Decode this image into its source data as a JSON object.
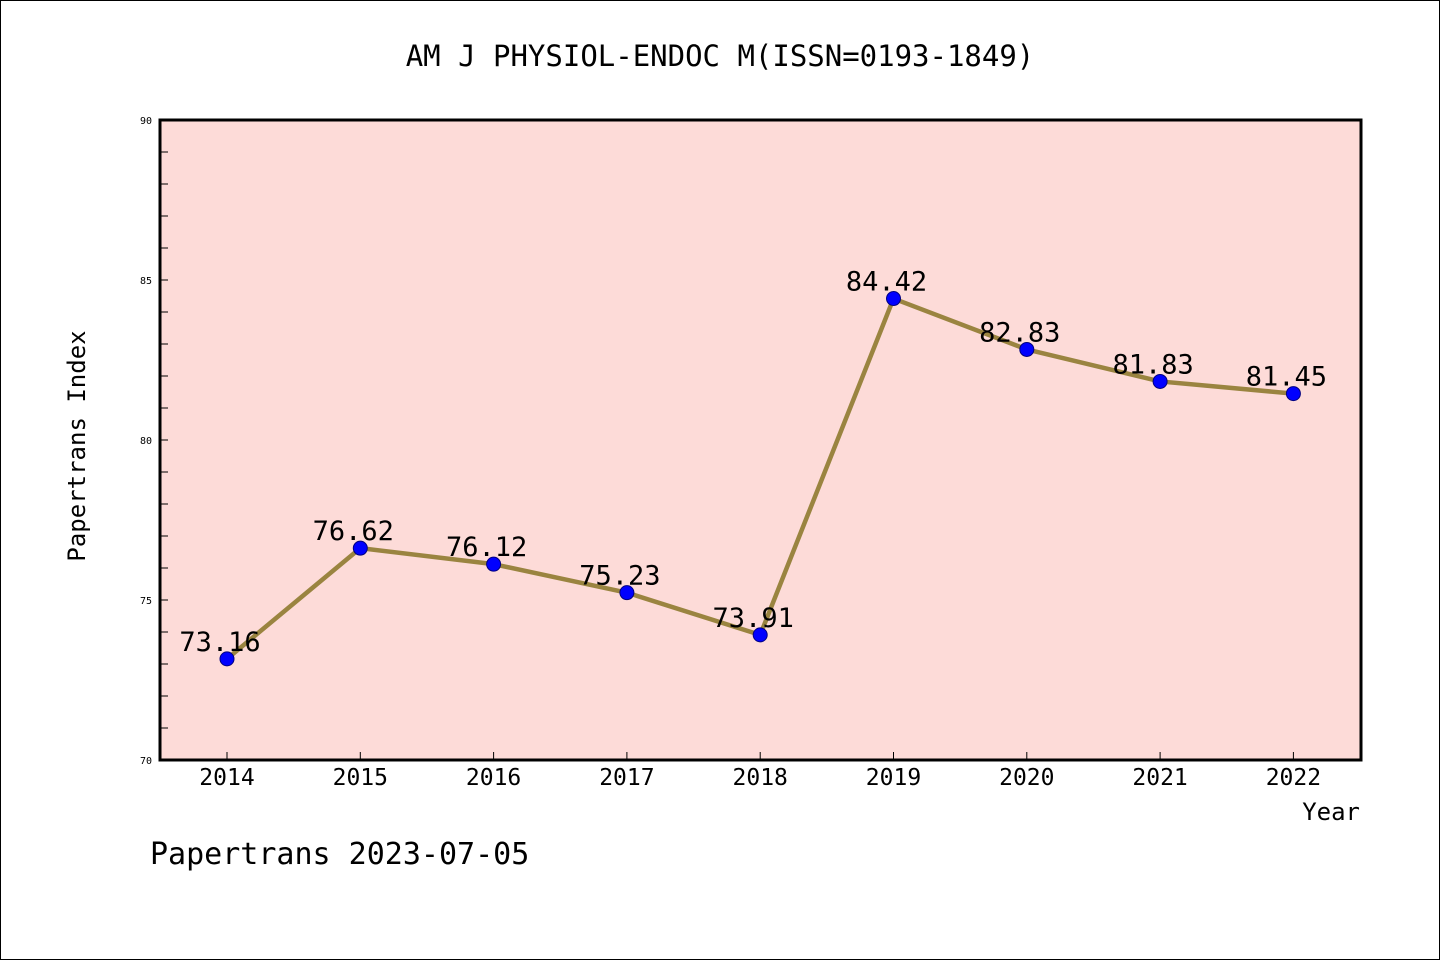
{
  "chart_data": {
    "type": "line",
    "title": "AM J PHYSIOL-ENDOC M(ISSN=0193-1849)",
    "xlabel": "Year",
    "ylabel": "Papertrans Index",
    "categories": [
      "2014",
      "2015",
      "2016",
      "2017",
      "2018",
      "2019",
      "2020",
      "2021",
      "2022"
    ],
    "series": [
      {
        "values": [
          73.16,
          76.62,
          76.12,
          75.23,
          73.91,
          84.42,
          82.83,
          81.83,
          81.45
        ],
        "labels": [
          "73.16",
          "76.62",
          "76.12",
          "75.23",
          "73.91",
          "84.42",
          "82.83",
          "81.83",
          "81.45"
        ]
      }
    ],
    "ylim": [
      70,
      90
    ],
    "yticks": [
      "70",
      "75",
      "80",
      "85",
      "90"
    ],
    "grid": false,
    "legend": "none",
    "colors": {
      "plot_background": "#fddbd8",
      "line": "#9a8440",
      "marker": "#0000ff",
      "marker_edge": "#000080"
    }
  },
  "footer": {
    "watermark": "Papertrans 2023-07-05"
  }
}
